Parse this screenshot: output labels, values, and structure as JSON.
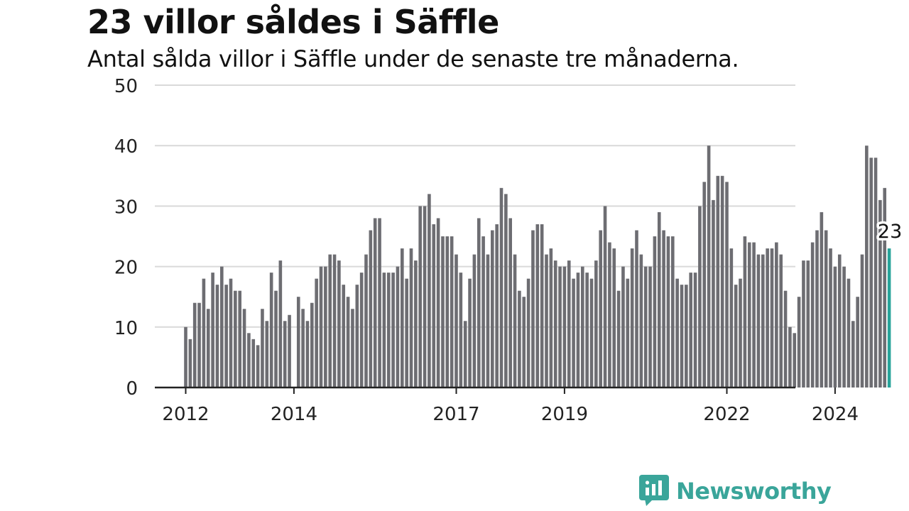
{
  "header": {
    "title": "23 villor såldes i Säffle",
    "subtitle": "Antal sålda villor i Säffle under de senaste tre månaderna."
  },
  "brand": {
    "name": "Newsworthy",
    "color": "#3aa59a"
  },
  "chart_data": {
    "type": "bar",
    "title": "23 villor såldes i Säffle",
    "subtitle": "Antal sålda villor i Säffle under de senaste tre månaderna.",
    "x_start": "2012-01",
    "frequency": "monthly",
    "ylim": [
      0,
      50
    ],
    "yticks": [
      0,
      10,
      20,
      30,
      40,
      50
    ],
    "xtick_labels": [
      "2012",
      "2014",
      "2017",
      "2019",
      "2022",
      "2024"
    ],
    "grid": true,
    "bar_color": "#6d6d72",
    "highlight_color": "#27a39a",
    "highlight_label": "23",
    "values": [
      10,
      8,
      14,
      14,
      18,
      13,
      19,
      17,
      20,
      17,
      18,
      16,
      16,
      13,
      9,
      8,
      7,
      13,
      11,
      19,
      16,
      21,
      11,
      12,
      0,
      15,
      13,
      11,
      14,
      18,
      20,
      20,
      22,
      22,
      21,
      17,
      15,
      13,
      17,
      19,
      22,
      26,
      28,
      28,
      19,
      19,
      19,
      20,
      23,
      18,
      23,
      21,
      30,
      30,
      32,
      27,
      28,
      25,
      25,
      25,
      22,
      19,
      11,
      18,
      22,
      28,
      25,
      22,
      26,
      27,
      33,
      32,
      28,
      22,
      16,
      15,
      18,
      26,
      27,
      27,
      22,
      23,
      21,
      20,
      20,
      21,
      18,
      19,
      20,
      19,
      18,
      21,
      26,
      30,
      24,
      23,
      16,
      20,
      18,
      23,
      26,
      22,
      20,
      20,
      25,
      29,
      26,
      25,
      25,
      18,
      17,
      17,
      19,
      19,
      30,
      34,
      40,
      31,
      35,
      35,
      34,
      23,
      17,
      18,
      25,
      24,
      24,
      22,
      22,
      23,
      23,
      24,
      22,
      16,
      10,
      9,
      15,
      21,
      21,
      24,
      26,
      29,
      26,
      23,
      20,
      22,
      20,
      18,
      11,
      15,
      22,
      40,
      38,
      38,
      31,
      33,
      23
    ]
  }
}
